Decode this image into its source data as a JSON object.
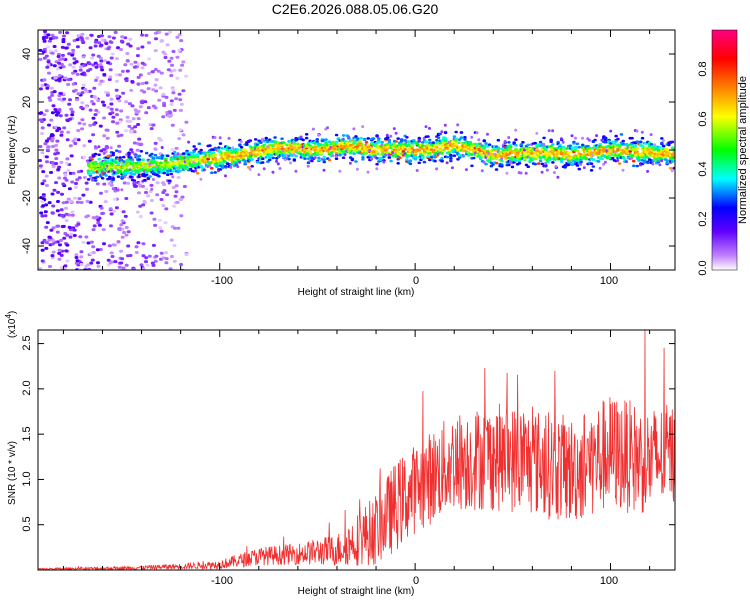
{
  "title": "C2E6.2026.088.05.06.G20",
  "chart_data": [
    {
      "type": "heatmap",
      "title": "C2E6.2026.088.05.06.G20",
      "xlabel": "Height of straight line (km)",
      "ylabel": "Frequency (Hz)",
      "xlim": [
        -193,
        133
      ],
      "ylim": [
        -50,
        50
      ],
      "x_ticks": [
        "-100",
        "0",
        "100"
      ],
      "y_ticks": [
        "40",
        "20",
        "0",
        "-20",
        "-40"
      ],
      "colorbar": {
        "label": "Normalized spectral amplitude",
        "range": [
          0,
          0.95
        ],
        "ticks": [
          "0.0",
          "0.2",
          "0.4",
          "0.6",
          "0.8"
        ],
        "colors": [
          "#ffffff",
          "#c080ff",
          "#6000ff",
          "#0000ff",
          "#00ffff",
          "#00ff00",
          "#ffff00",
          "#ff8000",
          "#ff0000",
          "#ff0080"
        ]
      },
      "ridge_center": {
        "x": [
          -165,
          -150,
          -130,
          -110,
          -90,
          -70,
          -50,
          -35,
          -20,
          0,
          20,
          40,
          60,
          80,
          100,
          120,
          133
        ],
        "y": [
          -7,
          -7,
          -6,
          -4,
          -2,
          1,
          0,
          2,
          0,
          0,
          2,
          -2,
          -1,
          -2,
          0,
          -1,
          -2
        ]
      },
      "grid": false
    },
    {
      "type": "line",
      "xlabel": "Height of straight line (km)",
      "ylabel": "SNR (10 * v/v)",
      "y_multiplier": "(x10",
      "y_multiplier_exp": "4",
      "xlim": [
        -193,
        133
      ],
      "ylim": [
        0,
        2.65
      ],
      "x_ticks": [
        "-100",
        "0",
        "100"
      ],
      "y_ticks": [
        "0.5",
        "1.0",
        "1.5",
        "2.0",
        "2.5"
      ],
      "color": "#f03030",
      "envelope": {
        "x": [
          -193,
          -150,
          -120,
          -100,
          -80,
          -60,
          -40,
          -20,
          -10,
          0,
          20,
          40,
          60,
          80,
          100,
          120,
          133
        ],
        "mean": [
          0.01,
          0.02,
          0.04,
          0.06,
          0.15,
          0.18,
          0.22,
          0.45,
          0.7,
          0.9,
          1.2,
          1.25,
          1.2,
          1.1,
          1.3,
          1.2,
          1.3
        ],
        "spread": [
          0.01,
          0.02,
          0.03,
          0.05,
          0.1,
          0.12,
          0.18,
          0.4,
          0.5,
          0.5,
          0.55,
          0.6,
          0.6,
          0.6,
          0.65,
          0.6,
          0.55
        ]
      },
      "grid": false
    }
  ]
}
